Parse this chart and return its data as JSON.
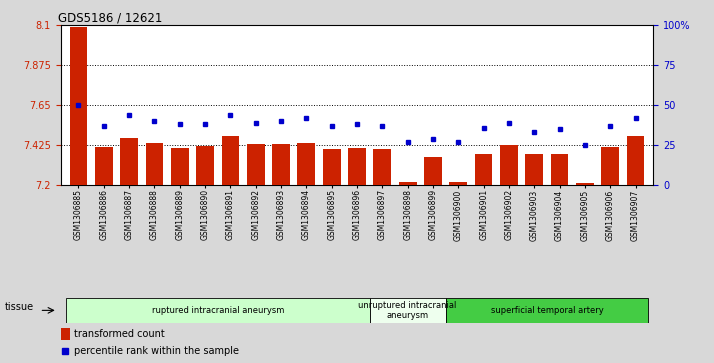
{
  "title": "GDS5186 / 12621",
  "samples": [
    "GSM1306885",
    "GSM1306886",
    "GSM1306887",
    "GSM1306888",
    "GSM1306889",
    "GSM1306890",
    "GSM1306891",
    "GSM1306892",
    "GSM1306893",
    "GSM1306894",
    "GSM1306895",
    "GSM1306896",
    "GSM1306897",
    "GSM1306898",
    "GSM1306899",
    "GSM1306900",
    "GSM1306901",
    "GSM1306902",
    "GSM1306903",
    "GSM1306904",
    "GSM1306905",
    "GSM1306906",
    "GSM1306907"
  ],
  "bar_values": [
    8.09,
    7.415,
    7.465,
    7.435,
    7.41,
    7.42,
    7.475,
    7.43,
    7.43,
    7.435,
    7.405,
    7.41,
    7.405,
    7.22,
    7.36,
    7.22,
    7.375,
    7.425,
    7.375,
    7.375,
    7.21,
    7.415,
    7.475
  ],
  "percentile_values": [
    50,
    37,
    44,
    40,
    38,
    38,
    44,
    39,
    40,
    42,
    37,
    38,
    37,
    27,
    29,
    27,
    36,
    39,
    33,
    35,
    25,
    37,
    42
  ],
  "ylim_left": [
    7.2,
    8.1
  ],
  "ylim_right": [
    0,
    100
  ],
  "yticks_left": [
    7.2,
    7.425,
    7.65,
    7.875,
    8.1
  ],
  "yticks_right": [
    0,
    25,
    50,
    75,
    100
  ],
  "ytick_labels_right": [
    "0",
    "25",
    "50",
    "75",
    "100%"
  ],
  "hlines": [
    7.425,
    7.65,
    7.875
  ],
  "bar_color": "#cc2200",
  "dot_color": "#0000cc",
  "groups": [
    {
      "label": "ruptured intracranial aneurysm",
      "start": 0,
      "end": 12,
      "color": "#ccffcc"
    },
    {
      "label": "unruptured intracranial\naneurysm",
      "start": 12,
      "end": 15,
      "color": "#eeffee"
    },
    {
      "label": "superficial temporal artery",
      "start": 15,
      "end": 23,
      "color": "#44cc44"
    }
  ],
  "tissue_label": "tissue",
  "legend_bar_label": "transformed count",
  "legend_dot_label": "percentile rank within the sample",
  "background_color": "#d8d8d8",
  "plot_bg_color": "#ffffff"
}
